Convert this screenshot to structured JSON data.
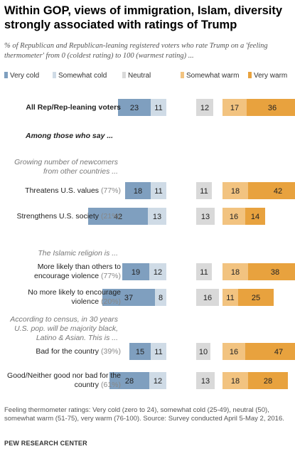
{
  "title": "Within GOP, views of immigration, Islam, diversity strongly associated with ratings of Trump",
  "subtitle": "% of Republican and Republican-leaning registered voters who rate Trump on a 'feeling thermometer' from 0 (coldest rating) to 100 (warmest rating) ...",
  "legend": [
    {
      "label": "Very cold",
      "color": "#7f9fbf"
    },
    {
      "label": "Somewhat cold",
      "color": "#cfdbe6"
    },
    {
      "label": "Neutral",
      "color": "#d9d9d9"
    },
    {
      "label": "Somewhat warm",
      "color": "#f2c380"
    },
    {
      "label": "Very warm",
      "color": "#e8a23e"
    }
  ],
  "sections": {
    "among": "Among those who say ...",
    "newcomers": "Growing number of newcomers from other countries ...",
    "islam": "The Islamic religion is ...",
    "census": "According to census, in 30 years U.S. pop. will be majority black, Latino & Asian. This is ..."
  },
  "chart_data": {
    "type": "bar",
    "stacked": true,
    "series_names": [
      "Very cold",
      "Somewhat cold",
      "Neutral",
      "Somewhat warm",
      "Very warm"
    ],
    "rows": [
      {
        "label": "All Rep/Rep-leaning voters",
        "pct": "",
        "values": [
          23,
          11,
          12,
          17,
          36
        ]
      },
      {
        "label": "Threatens U.S. values",
        "pct": "(77%)",
        "values": [
          18,
          11,
          11,
          18,
          42
        ]
      },
      {
        "label": "Strengthens U.S. society",
        "pct": "(21%)",
        "values": [
          42,
          13,
          13,
          16,
          14
        ]
      },
      {
        "label": "More likely than others to encourage violence",
        "pct": "(77%)",
        "values": [
          19,
          12,
          11,
          18,
          38
        ]
      },
      {
        "label": "No more likely to encourage violence",
        "pct": "(20%)",
        "values": [
          37,
          8,
          16,
          11,
          25
        ]
      },
      {
        "label": "Bad for the country",
        "pct": "(39%)",
        "values": [
          15,
          11,
          10,
          16,
          47
        ]
      },
      {
        "label": "Good/Neither good nor bad for the country",
        "pct": "(61%)",
        "values": [
          28,
          12,
          13,
          18,
          28
        ]
      }
    ]
  },
  "footer": "Feeling thermometer ratings: Very cold (zero to 24), somewhat cold (25-49), neutral (50), somewhat warm (51-75), very warm (76-100). Source: Survey conducted April 5-May 2, 2016.",
  "brand": "PEW RESEARCH CENTER"
}
